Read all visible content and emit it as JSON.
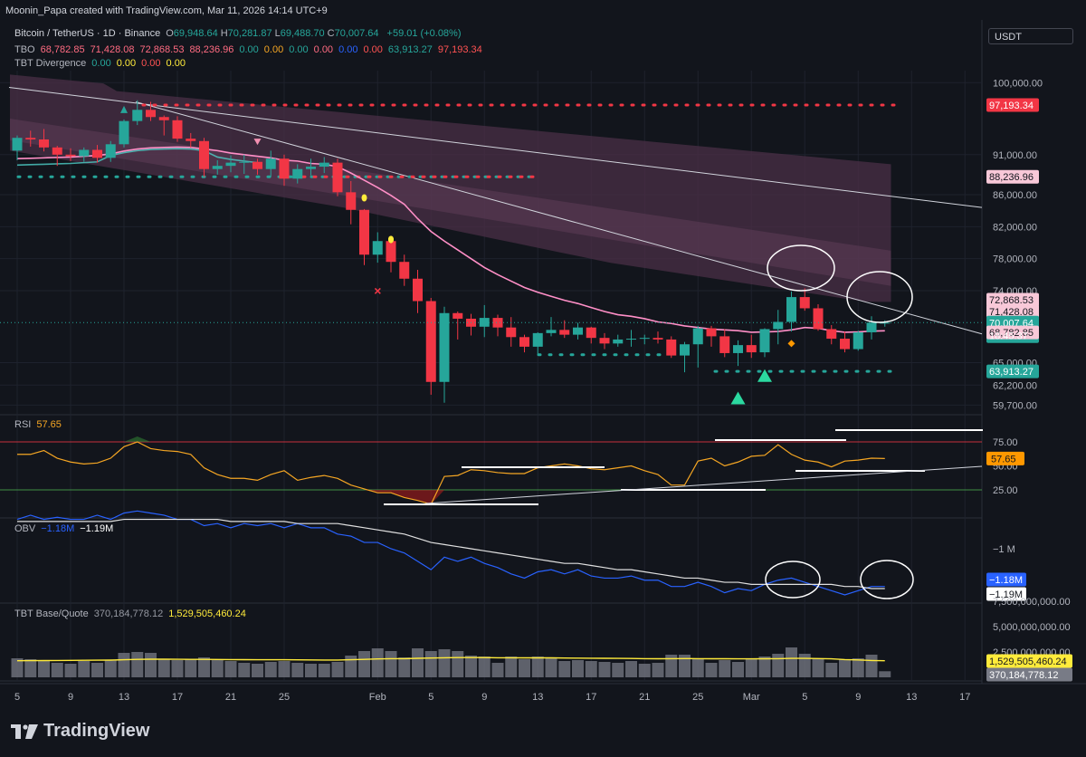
{
  "header": {
    "created": "Moonin_Papa created with TradingView.com, Mar 11, 2026 14:14 UTC+9"
  },
  "legend": {
    "symbol": "Bitcoin / TetherUS · 1D · Binance",
    "ohlc": [
      {
        "k": "O",
        "v": "69,948.64"
      },
      {
        "k": "H",
        "v": "70,281.87"
      },
      {
        "k": "L",
        "v": "69,488.70"
      },
      {
        "k": "C",
        "v": "70,007.64"
      }
    ],
    "change": "+59.01 (+0.08%)",
    "tbo": {
      "name": "TBO",
      "values": [
        {
          "v": "68,782.85",
          "c": "#ff6b81"
        },
        {
          "v": "71,428.08",
          "c": "#ff6b81"
        },
        {
          "v": "72,868.53",
          "c": "#ff6b81"
        },
        {
          "v": "88,236.96",
          "c": "#ff6b81"
        },
        {
          "v": "0.00",
          "c": "#26a69a"
        },
        {
          "v": "0.00",
          "c": "#f5a623"
        },
        {
          "v": "0.00",
          "c": "#26a69a"
        },
        {
          "v": "0.00",
          "c": "#ff6b81"
        },
        {
          "v": "0.00",
          "c": "#2962ff"
        },
        {
          "v": "0.00",
          "c": "#ff5252"
        },
        {
          "v": "63,913.27",
          "c": "#26a69a"
        },
        {
          "v": "97,193.34",
          "c": "#ff5252"
        }
      ]
    },
    "tbt_div": {
      "name": "TBT Divergence",
      "values": [
        {
          "v": "0.00",
          "c": "#26a69a"
        },
        {
          "v": "0.00",
          "c": "#ffeb3b"
        },
        {
          "v": "0.00",
          "c": "#ff5252"
        },
        {
          "v": "0.00",
          "c": "#ffeb3b"
        }
      ]
    },
    "rsi": {
      "name": "RSI",
      "value": "57.65"
    },
    "obv": {
      "name": "OBV",
      "v1": "−1.18M",
      "v2": "−1.19M"
    },
    "base_quote": {
      "name": "TBT Base/Quote",
      "v1": "370,184,778.12",
      "v2": "1,529,505,460.24"
    }
  },
  "currency_button": "USDT",
  "brand": "TradingView",
  "colors": {
    "up": "#26a69a",
    "down": "#f23645",
    "bg": "#12151c",
    "grid": "#1e222d",
    "ma": "#ff8fc7",
    "cloud": "#4a2f45"
  },
  "axes": {
    "price_ticks": [
      {
        "p": 100000,
        "l": "100,000.00"
      },
      {
        "p": 91000,
        "l": "91,000.00"
      },
      {
        "p": 86000,
        "l": "86,000.00"
      },
      {
        "p": 82000,
        "l": "82,000.00"
      },
      {
        "p": 78000,
        "l": "78,000.00"
      },
      {
        "p": 74000,
        "l": "74,000.00"
      },
      {
        "p": 65000,
        "l": "65,000.00"
      },
      {
        "p": 62200,
        "l": "62,200.00"
      },
      {
        "p": 59700,
        "l": "59,700.00"
      }
    ],
    "price_labels": [
      {
        "p": 97193.34,
        "l": "97,193.34",
        "bg": "#f23645",
        "fg": "#ffffff"
      },
      {
        "p": 88236.96,
        "l": "88,236.96",
        "bg": "#f8c8d8",
        "fg": "#12151c"
      },
      {
        "p": 72868.53,
        "l": "72,868.53",
        "bg": "#f8c8d8",
        "fg": "#12151c"
      },
      {
        "p": 71428.08,
        "l": "71,428.08",
        "bg": "#f8c8d8",
        "fg": "#12151c"
      },
      {
        "p": 70007.64,
        "l": "70,007.64",
        "bg": "#26a69a",
        "fg": "#ffffff"
      },
      {
        "p": 68782.85,
        "l": "68,782.85",
        "bg": "#f8c8d8",
        "fg": "#12151c"
      },
      {
        "p": 63913.27,
        "l": "63,913.27",
        "bg": "#26a69a",
        "fg": "#ffffff"
      }
    ],
    "countdown": "18:45:37",
    "rsi_ticks": [
      {
        "v": 75,
        "l": "75.00"
      },
      {
        "v": 50,
        "l": "50.00"
      },
      {
        "v": 25,
        "l": "25.00"
      }
    ],
    "rsi_label": {
      "v": 57.65,
      "l": "57.65"
    },
    "obv_ticks": [
      {
        "v": -1.0,
        "l": "−1 M"
      }
    ],
    "obv_labels": [
      {
        "v": -1.18,
        "l": "−1.18M",
        "bg": "#2962ff",
        "fg": "#ffffff"
      },
      {
        "v": -1.19,
        "l": "−1.19M",
        "bg": "#ffffff",
        "fg": "#12151c"
      }
    ],
    "vol_ticks": [
      {
        "v": 7500000000,
        "l": "7,500,000,000.00"
      },
      {
        "v": 5000000000,
        "l": "5,000,000,000.00"
      },
      {
        "v": 2500000000,
        "l": "2,500,000,000.00"
      }
    ],
    "vol_labels": [
      {
        "v": 1529505460.24,
        "l": "1,529,505,460.24",
        "bg": "#ffeb3b",
        "fg": "#12151c"
      },
      {
        "v": 370184778.12,
        "l": "370,184,778.12",
        "bg": "#787b86",
        "fg": "#ffffff"
      }
    ],
    "time_ticks": [
      {
        "i": 0,
        "l": "5"
      },
      {
        "i": 4,
        "l": "9"
      },
      {
        "i": 8,
        "l": "13"
      },
      {
        "i": 12,
        "l": "17"
      },
      {
        "i": 16,
        "l": "21"
      },
      {
        "i": 20,
        "l": "25"
      },
      {
        "i": 27,
        "l": "Feb"
      },
      {
        "i": 31,
        "l": "5"
      },
      {
        "i": 35,
        "l": "9"
      },
      {
        "i": 39,
        "l": "13"
      },
      {
        "i": 43,
        "l": "17"
      },
      {
        "i": 47,
        "l": "21"
      },
      {
        "i": 51,
        "l": "25"
      },
      {
        "i": 55,
        "l": "Mar"
      },
      {
        "i": 59,
        "l": "5"
      },
      {
        "i": 63,
        "l": "9"
      },
      {
        "i": 67,
        "l": "13"
      },
      {
        "i": 71,
        "l": "17"
      }
    ]
  },
  "chart_data": [
    {
      "type": "candlestick",
      "title": "Bitcoin / TetherUS · 1D · Binance",
      "x_start": "Jan 5, 2026",
      "ylim": [
        58500,
        101500
      ],
      "candles": [
        [
          91500,
          93400,
          90300,
          93100
        ],
        [
          93100,
          94000,
          92000,
          92900
        ],
        [
          92900,
          94200,
          91400,
          91900
        ],
        [
          91900,
          92100,
          89600,
          91000
        ],
        [
          91000,
          91800,
          90200,
          90800
        ],
        [
          90800,
          91900,
          90100,
          91600
        ],
        [
          91600,
          92200,
          90000,
          90600
        ],
        [
          90600,
          92700,
          90100,
          92300
        ],
        [
          92300,
          95400,
          91900,
          95200
        ],
        [
          95200,
          97800,
          94700,
          96600
        ],
        [
          96600,
          97600,
          95200,
          95700
        ],
        [
          95700,
          95900,
          93400,
          95300
        ],
        [
          95300,
          95800,
          92600,
          93000
        ],
        [
          93000,
          93700,
          91900,
          92700
        ],
        [
          92700,
          93100,
          88200,
          89200
        ],
        [
          89200,
          90300,
          88500,
          89600
        ],
        [
          89600,
          90900,
          88800,
          90000
        ],
        [
          90000,
          91000,
          88600,
          90100
        ],
        [
          90100,
          90500,
          88500,
          89200
        ],
        [
          89200,
          91500,
          88200,
          90500
        ],
        [
          90500,
          91000,
          87100,
          88000
        ],
        [
          88000,
          89800,
          87400,
          89200
        ],
        [
          89200,
          90500,
          88400,
          89500
        ],
        [
          89500,
          90700,
          88700,
          90000
        ],
        [
          90000,
          90500,
          85800,
          86300
        ],
        [
          86300,
          87700,
          82300,
          84100
        ],
        [
          84100,
          84200,
          77200,
          78500
        ],
        [
          78500,
          81300,
          77500,
          80200
        ],
        [
          80200,
          80400,
          76300,
          77600
        ],
        [
          77600,
          78500,
          74600,
          75500
        ],
        [
          75500,
          76600,
          71200,
          72700
        ],
        [
          72700,
          73100,
          61000,
          62600
        ],
        [
          62600,
          72000,
          60000,
          71200
        ],
        [
          71200,
          71400,
          67900,
          70500
        ],
        [
          70500,
          71100,
          68400,
          69500
        ],
        [
          69500,
          72200,
          68200,
          70600
        ],
        [
          70600,
          71000,
          68300,
          69400
        ],
        [
          69400,
          70700,
          67000,
          68200
        ],
        [
          68200,
          68500,
          66300,
          67000
        ],
        [
          67000,
          68800,
          66100,
          68700
        ],
        [
          68700,
          70700,
          68300,
          69100
        ],
        [
          69100,
          70300,
          68100,
          68500
        ],
        [
          68500,
          70000,
          67900,
          69400
        ],
        [
          69400,
          69500,
          67400,
          68100
        ],
        [
          68100,
          68700,
          66700,
          67400
        ],
        [
          67400,
          68500,
          67000,
          67900
        ],
        [
          67900,
          69100,
          67000,
          68000
        ],
        [
          68000,
          68500,
          67300,
          68100
        ],
        [
          68100,
          68900,
          67400,
          67900
        ],
        [
          67900,
          68300,
          65600,
          65900
        ],
        [
          65900,
          67600,
          63800,
          67300
        ],
        [
          67300,
          69600,
          64400,
          69300
        ],
        [
          69300,
          69600,
          67000,
          68300
        ],
        [
          68300,
          69200,
          65700,
          66200
        ],
        [
          66200,
          67800,
          64600,
          67200
        ],
        [
          67200,
          68500,
          65600,
          66300
        ],
        [
          66300,
          69300,
          65700,
          69200
        ],
        [
          69200,
          71600,
          67300,
          70100
        ],
        [
          70100,
          73900,
          68900,
          73200
        ],
        [
          73200,
          74300,
          71500,
          71800
        ],
        [
          71800,
          72300,
          69000,
          69200
        ],
        [
          69200,
          69700,
          67300,
          68000
        ],
        [
          68000,
          68900,
          66300,
          66700
        ],
        [
          66700,
          69000,
          66500,
          68800
        ],
        [
          68800,
          70800,
          67900,
          70000
        ],
        [
          70000,
          70300,
          69500,
          70000
        ]
      ],
      "ma": [
        90500,
        90550,
        90600,
        90650,
        90700,
        90800,
        90900,
        91100,
        91450,
        91700,
        91850,
        91900,
        91950,
        91900,
        91700,
        91500,
        91200,
        91000,
        90800,
        90600,
        90300,
        90200,
        89900,
        89800,
        89500,
        88700,
        87800,
        86900,
        85900,
        84800,
        83000,
        81400,
        80200,
        79100,
        78000,
        76900,
        76000,
        75200,
        74400,
        73800,
        73300,
        72800,
        72400,
        71900,
        71400,
        71000,
        70800,
        70500,
        70100,
        69900,
        69600,
        69400,
        69200,
        69100,
        69000,
        68800,
        68850,
        68900,
        69100,
        69400,
        69300,
        69000,
        68800,
        68850,
        68950,
        68990
      ],
      "tbo_upper": 97193.34,
      "tbo_lower": 63913.27,
      "tbo_mid": 88236.96
    },
    {
      "type": "line",
      "title": "RSI",
      "ylim": [
        0,
        100
      ],
      "series": [
        {
          "name": "RSI",
          "values": [
            62,
            62,
            66,
            58,
            54,
            52,
            53,
            58,
            70,
            75,
            68,
            66,
            65,
            62,
            48,
            41,
            37,
            37,
            35,
            41,
            45,
            35,
            38,
            40,
            37,
            30,
            26,
            22,
            22,
            17,
            14,
            10,
            39,
            40,
            46,
            45,
            43,
            42,
            42,
            48,
            50,
            52,
            50,
            47,
            46,
            48,
            50,
            45,
            41,
            30,
            30,
            55,
            58,
            50,
            54,
            60,
            61,
            72,
            62,
            56,
            54,
            49,
            55,
            56,
            58,
            57.65
          ]
        }
      ]
    },
    {
      "type": "line",
      "title": "OBV",
      "ylim": [
        -1.4,
        -0.6
      ],
      "series": [
        {
          "name": "OBV",
          "values": [
            -0.86,
            -0.84,
            -0.86,
            -0.85,
            -0.86,
            -0.86,
            -0.84,
            -0.86,
            -0.83,
            -0.82,
            -0.83,
            -0.84,
            -0.86,
            -0.86,
            -0.89,
            -0.88,
            -0.9,
            -0.88,
            -0.89,
            -0.88,
            -0.9,
            -0.88,
            -0.9,
            -0.9,
            -0.93,
            -0.94,
            -0.97,
            -0.97,
            -1.0,
            -1.02,
            -1.06,
            -1.1,
            -1.04,
            -1.06,
            -1.04,
            -1.07,
            -1.09,
            -1.12,
            -1.14,
            -1.11,
            -1.1,
            -1.12,
            -1.1,
            -1.13,
            -1.14,
            -1.14,
            -1.13,
            -1.15,
            -1.15,
            -1.18,
            -1.18,
            -1.16,
            -1.18,
            -1.21,
            -1.19,
            -1.2,
            -1.17,
            -1.15,
            -1.14,
            -1.16,
            -1.18,
            -1.2,
            -1.22,
            -1.2,
            -1.18,
            -1.18
          ]
        },
        {
          "name": "OBV MA",
          "values": [
            -0.87,
            -0.87,
            -0.87,
            -0.87,
            -0.87,
            -0.87,
            -0.87,
            -0.87,
            -0.86,
            -0.86,
            -0.86,
            -0.86,
            -0.86,
            -0.86,
            -0.86,
            -0.86,
            -0.87,
            -0.87,
            -0.87,
            -0.87,
            -0.87,
            -0.88,
            -0.88,
            -0.88,
            -0.88,
            -0.89,
            -0.9,
            -0.91,
            -0.92,
            -0.93,
            -0.95,
            -0.97,
            -0.98,
            -0.99,
            -1.0,
            -1.01,
            -1.02,
            -1.03,
            -1.04,
            -1.05,
            -1.06,
            -1.07,
            -1.07,
            -1.08,
            -1.09,
            -1.1,
            -1.1,
            -1.11,
            -1.12,
            -1.13,
            -1.14,
            -1.14,
            -1.15,
            -1.16,
            -1.16,
            -1.17,
            -1.17,
            -1.17,
            -1.17,
            -1.17,
            -1.17,
            -1.17,
            -1.18,
            -1.18,
            -1.19,
            -1.19
          ]
        }
      ]
    },
    {
      "type": "bar",
      "title": "TBT Base/Quote",
      "ylim": [
        0,
        8000000000
      ],
      "values": [
        1800000000,
        1700000000,
        1500000000,
        1300000000,
        1200000000,
        1500000000,
        1300000000,
        1600000000,
        2400000000,
        2500000000,
        2400000000,
        1700000000,
        1600000000,
        1700000000,
        1900000000,
        1600000000,
        1500000000,
        1300000000,
        1200000000,
        1400000000,
        1500000000,
        1300000000,
        1200000000,
        1200000000,
        1400000000,
        2100000000,
        2600000000,
        2900000000,
        2600000000,
        1900000000,
        2900000000,
        2600000000,
        2800000000,
        2600000000,
        2100000000,
        2000000000,
        1300000000,
        2000000000,
        1700000000,
        2000000000,
        1900000000,
        1500000000,
        1600000000,
        1500000000,
        1400000000,
        1300000000,
        1500000000,
        1200000000,
        1300000000,
        2200000000,
        2200000000,
        1800000000,
        1300000000,
        1600000000,
        1400000000,
        1700000000,
        2000000000,
        2300000000,
        3000000000,
        2300000000,
        1800000000,
        1300000000,
        1700000000,
        1800000000,
        2200000000,
        370184778.12
      ],
      "ma": [
        1529505460.24,
        1540000000,
        1550000000,
        1560000000,
        1570000000,
        1580000000,
        1590000000,
        1600000000,
        1640000000,
        1680000000,
        1700000000,
        1700000000,
        1690000000,
        1680000000,
        1680000000,
        1670000000,
        1660000000,
        1650000000,
        1640000000,
        1640000000,
        1640000000,
        1630000000,
        1620000000,
        1610000000,
        1610000000,
        1640000000,
        1680000000,
        1730000000,
        1760000000,
        1760000000,
        1800000000,
        1830000000,
        1860000000,
        1880000000,
        1880000000,
        1880000000,
        1860000000,
        1860000000,
        1850000000,
        1850000000,
        1850000000,
        1830000000,
        1820000000,
        1810000000,
        1800000000,
        1790000000,
        1780000000,
        1760000000,
        1750000000,
        1760000000,
        1770000000,
        1760000000,
        1750000000,
        1750000000,
        1740000000,
        1740000000,
        1750000000,
        1760000000,
        1790000000,
        1790000000,
        1770000000,
        1740000000,
        1660000000,
        1620000000,
        1560000000,
        1529505460.24
      ]
    }
  ]
}
